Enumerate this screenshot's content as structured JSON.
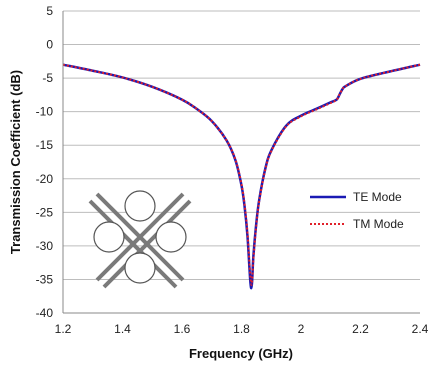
{
  "chart_data": {
    "type": "line",
    "xlabel": "Frequency (GHz)",
    "ylabel": "Transmission Coefficient (dB)",
    "xlim": [
      1.2,
      2.4
    ],
    "ylim": [
      -40,
      5
    ],
    "xticks": [
      1.2,
      1.4,
      1.6,
      1.8,
      2,
      2.2,
      2.4
    ],
    "xtick_labels": [
      "1.2",
      "1.4",
      "1.6",
      "1.8",
      "2",
      "2.2",
      "2.4"
    ],
    "yticks": [
      5,
      0,
      -5,
      -10,
      -15,
      -20,
      -25,
      -30,
      -35,
      -40
    ],
    "ytick_labels": [
      "5",
      "0",
      "-5",
      "-10",
      "-15",
      "-20",
      "-25",
      "-30",
      "-35",
      "-40"
    ],
    "grid": "horizontal",
    "legend_position": "right",
    "inset": "unit-cell sketch: crossed strips with four circles",
    "series": [
      {
        "name": "TE Mode",
        "color": "#1a1ab4",
        "style": "solid",
        "x": [
          1.2,
          1.3,
          1.4,
          1.5,
          1.6,
          1.65,
          1.7,
          1.75,
          1.78,
          1.8,
          1.81,
          1.82,
          1.83,
          1.835,
          1.84,
          1.85,
          1.86,
          1.88,
          1.9,
          1.95,
          2.0,
          2.05,
          2.1,
          2.12,
          2.13,
          2.14,
          2.15,
          2.2,
          2.3,
          2.4
        ],
        "y": [
          -3.0,
          -3.9,
          -4.9,
          -6.3,
          -8.2,
          -9.6,
          -11.4,
          -14.3,
          -17.3,
          -21.0,
          -24.0,
          -28.5,
          -35.5,
          -35.7,
          -31.5,
          -26.5,
          -23.0,
          -18.5,
          -15.8,
          -12.1,
          -10.6,
          -9.6,
          -8.6,
          -8.2,
          -7.4,
          -6.6,
          -6.2,
          -5.1,
          -4.0,
          -3.0
        ]
      },
      {
        "name": "TM Mode",
        "color": "#e0202a",
        "style": "dotted",
        "x": [
          1.2,
          1.3,
          1.4,
          1.5,
          1.6,
          1.65,
          1.7,
          1.75,
          1.78,
          1.8,
          1.81,
          1.82,
          1.83,
          1.835,
          1.84,
          1.85,
          1.86,
          1.88,
          1.9,
          1.95,
          2.0,
          2.05,
          2.1,
          2.12,
          2.13,
          2.14,
          2.15,
          2.2,
          2.3,
          2.4
        ],
        "y": [
          -3.0,
          -3.9,
          -4.9,
          -6.3,
          -8.2,
          -9.6,
          -11.4,
          -14.3,
          -17.2,
          -20.8,
          -23.7,
          -28.0,
          -34.6,
          -35.6,
          -32.0,
          -26.8,
          -23.2,
          -18.6,
          -15.9,
          -12.2,
          -10.7,
          -9.7,
          -8.7,
          -8.2,
          -7.4,
          -6.6,
          -6.2,
          -5.1,
          -4.0,
          -3.0
        ]
      }
    ]
  }
}
